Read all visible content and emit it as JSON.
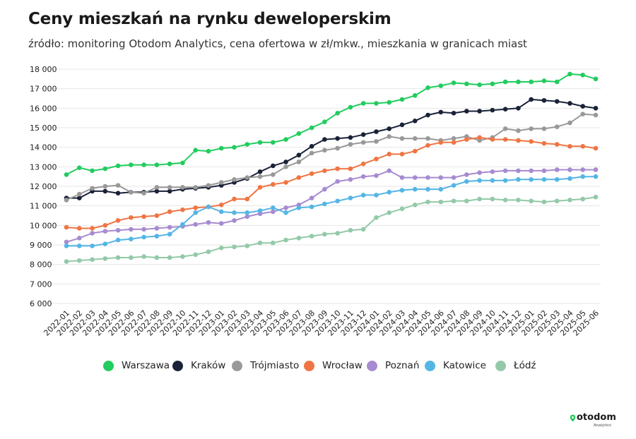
{
  "header": {
    "title": "Ceny mieszkań na rynku deweloperskim",
    "subtitle": "źródło: monitoring Otodom Analytics, cena ofertowa w zł/mkw., mieszkania w granicach miast"
  },
  "logo": {
    "name": "otodom-logo",
    "word": "otodom",
    "sub": "Analytics"
  },
  "chart_data": {
    "type": "line",
    "title": "Ceny mieszkań na rynku deweloperskim",
    "subtitle": "źródło: monitoring Otodom Analytics, cena ofertowa w zł/mkw., mieszkania w granicach miast",
    "xlabel": "",
    "ylabel": "",
    "ylim": [
      6000,
      18000
    ],
    "yticks": [
      6000,
      7000,
      8000,
      9000,
      10000,
      11000,
      12000,
      13000,
      14000,
      15000,
      16000,
      17000,
      18000
    ],
    "ytick_labels": [
      "6 000",
      "7 000",
      "8 000",
      "9 000",
      "10 000",
      "11 000",
      "12 000",
      "13 000",
      "14 000",
      "15 000",
      "16 000",
      "17 000",
      "18 000"
    ],
    "grid": "horizontal",
    "legend_position": "bottom",
    "x": [
      "2022-01",
      "2022-02",
      "2022-03",
      "2022-04",
      "2022-05",
      "2022-06",
      "2022-07",
      "2022-08",
      "2022-09",
      "2022-10",
      "2022-11",
      "2022-12",
      "2023-01",
      "2023-02",
      "2023-03",
      "2023-04",
      "2023-05",
      "2023-06",
      "2023-07",
      "2023-08",
      "2023-09",
      "2023-10",
      "2023-11",
      "2023-12",
      "2024-01",
      "2024-02",
      "2024-03",
      "2024-04",
      "2024-05",
      "2024-06",
      "2024-07",
      "2024-08",
      "2024-09",
      "2024-10",
      "2024-11",
      "2024-12",
      "2025-01",
      "2025-02",
      "2025-03",
      "2025-04",
      "2025-05",
      "2025-06"
    ],
    "x_points": [
      "2022-01",
      "2022-02",
      "2022-03",
      "2022-04",
      "2022-05",
      "2022-06",
      "2022-07",
      "2022-08",
      "2022-09",
      "2022-10",
      "2022-11",
      "2022-12",
      "2023-01",
      "2023-02",
      "2023-03",
      "2023-04",
      "2023-05",
      "2023-06",
      "2023-07",
      "2023-08",
      "2023-09",
      "2023-10",
      "2023-11",
      "2023-12",
      "2024-01",
      "2024-02",
      "2024-03",
      "2024-04",
      "2024-05",
      "2024-06",
      "2024-07",
      "2024-08",
      "2024-09",
      "2024-10",
      "2024-11",
      "2024-12",
      "2025-01",
      "2025-02",
      "2025-03",
      "2025-04",
      "2025-05",
      "2025-06"
    ],
    "series": [
      {
        "name": "Warszawa",
        "color": "#22cc5e",
        "values": [
          12600,
          12950,
          12800,
          12900,
          13050,
          13100,
          13100,
          13100,
          13150,
          13200,
          13850,
          13800,
          13950,
          14000,
          14150,
          14250,
          14250,
          14400,
          14700,
          15000,
          15300,
          15750,
          16050,
          16250,
          16250,
          16300,
          16450,
          16650,
          17050,
          17150,
          17300,
          17250,
          17200,
          17250,
          17350,
          17350,
          17350,
          17400,
          17350,
          17750,
          17700,
          17500
        ]
      },
      {
        "name": "Kraków",
        "color": "#1a2238",
        "values": [
          11400,
          11400,
          11750,
          11750,
          11650,
          11700,
          11700,
          11750,
          11750,
          11850,
          11900,
          11950,
          12050,
          12200,
          12400,
          12750,
          13050,
          13250,
          13600,
          14050,
          14400,
          14450,
          14500,
          14650,
          14800,
          14950,
          15150,
          15350,
          15650,
          15800,
          15750,
          15850,
          15850,
          15900,
          15950,
          16000,
          16450,
          16400,
          16350,
          16250,
          16100,
          16000
        ]
      },
      {
        "name": "Trójmiasto",
        "color": "#999999",
        "values": [
          11300,
          11600,
          11900,
          12000,
          12050,
          11700,
          11650,
          11950,
          11950,
          11950,
          11950,
          12050,
          12200,
          12350,
          12450,
          12500,
          12600,
          13000,
          13250,
          13700,
          13850,
          13950,
          14150,
          14250,
          14300,
          14550,
          14450,
          14450,
          14450,
          14350,
          14450,
          14550,
          14350,
          14500,
          14950,
          14850,
          14950,
          14950,
          15050,
          15250,
          15700,
          15650
        ]
      },
      {
        "name": "Wrocław",
        "color": "#f07545",
        "values": [
          9900,
          9850,
          9850,
          10000,
          10250,
          10400,
          10450,
          10500,
          10700,
          10800,
          10900,
          10950,
          11050,
          11350,
          11350,
          11950,
          12100,
          12200,
          12450,
          12650,
          12800,
          12900,
          12900,
          13150,
          13400,
          13650,
          13650,
          13800,
          14100,
          14250,
          14250,
          14400,
          14500,
          14400,
          14400,
          14350,
          14300,
          14200,
          14150,
          14050,
          14050,
          13950
        ]
      },
      {
        "name": "Poznań",
        "color": "#a78bd0",
        "values": [
          9150,
          9350,
          9600,
          9700,
          9750,
          9800,
          9800,
          9850,
          9900,
          9950,
          10050,
          10150,
          10100,
          10250,
          10450,
          10600,
          10700,
          10900,
          11050,
          11400,
          11850,
          12250,
          12350,
          12500,
          12550,
          12800,
          12450,
          12450,
          12450,
          12450,
          12450,
          12600,
          12700,
          12750,
          12800,
          12800,
          12800,
          12800,
          12850,
          12850,
          12850,
          12850
        ]
      },
      {
        "name": "Katowice",
        "color": "#55b5e5",
        "values": [
          8950,
          8950,
          8950,
          9050,
          9250,
          9300,
          9400,
          9450,
          9550,
          10050,
          10650,
          10950,
          10700,
          10650,
          10650,
          10750,
          10900,
          10650,
          10900,
          10950,
          11100,
          11250,
          11400,
          11550,
          11550,
          11700,
          11800,
          11850,
          11850,
          11850,
          12050,
          12250,
          12300,
          12300,
          12300,
          12350,
          12350,
          12350,
          12350,
          12400,
          12500,
          12500
        ]
      },
      {
        "name": "Łódź",
        "color": "#93c9a8",
        "values": [
          8150,
          8200,
          8250,
          8300,
          8350,
          8350,
          8400,
          8350,
          8350,
          8400,
          8500,
          8650,
          8850,
          8900,
          8950,
          9100,
          9100,
          9250,
          9350,
          9450,
          9550,
          9600,
          9750,
          9800,
          10400,
          10650,
          10850,
          11050,
          11200,
          11200,
          11250,
          11250,
          11350,
          11350,
          11300,
          11300,
          11250,
          11200,
          11250,
          11300,
          11350,
          11450
        ]
      }
    ]
  }
}
